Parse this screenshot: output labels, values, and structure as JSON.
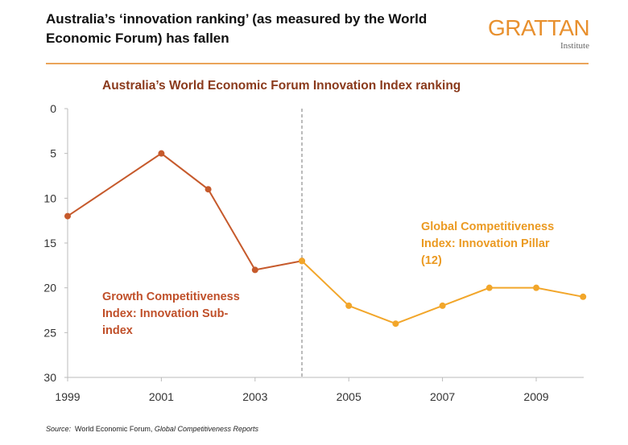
{
  "header": {
    "title": "Australia’s ‘innovation ranking’ (as measured by the World Economic Forum) has fallen",
    "logo_main": "GRATTAN",
    "logo_sub": "Institute"
  },
  "chart_data": {
    "type": "line",
    "title": "Australia’s World Economic Forum Innovation Index ranking",
    "xlim": [
      1999,
      2010
    ],
    "ylim": [
      0,
      30
    ],
    "y_inverted": true,
    "x_ticks": [
      "1999",
      "2001",
      "2003",
      "2005",
      "2007",
      "2009"
    ],
    "y_ticks": [
      "0",
      "5",
      "10",
      "15",
      "20",
      "25",
      "30"
    ],
    "grid": false,
    "divider_x": 2004,
    "series": [
      {
        "name": "Growth Competitiveness Index: Innovation Sub-index",
        "color": "#c65a2c",
        "x": [
          1999,
          2001,
          2002,
          2003,
          2004
        ],
        "y": [
          12,
          5,
          9,
          18,
          17
        ]
      },
      {
        "name": "Global Competitiveness Index: Innovation Pillar (12)",
        "color": "#f2a62a",
        "x": [
          2004,
          2005,
          2006,
          2007,
          2008,
          2009,
          2010
        ],
        "y": [
          17,
          22,
          24,
          22,
          20,
          20,
          21
        ]
      }
    ],
    "labels": {
      "growth": [
        "Growth Competitiveness",
        "Index: Innovation Sub-",
        "index"
      ],
      "global": [
        "Global Competitiveness",
        "Index: Innovation Pillar",
        "(12)"
      ]
    }
  },
  "source": {
    "label": "Source:",
    "org": "World Economic Forum,",
    "report": "Global Competitiveness Reports"
  }
}
